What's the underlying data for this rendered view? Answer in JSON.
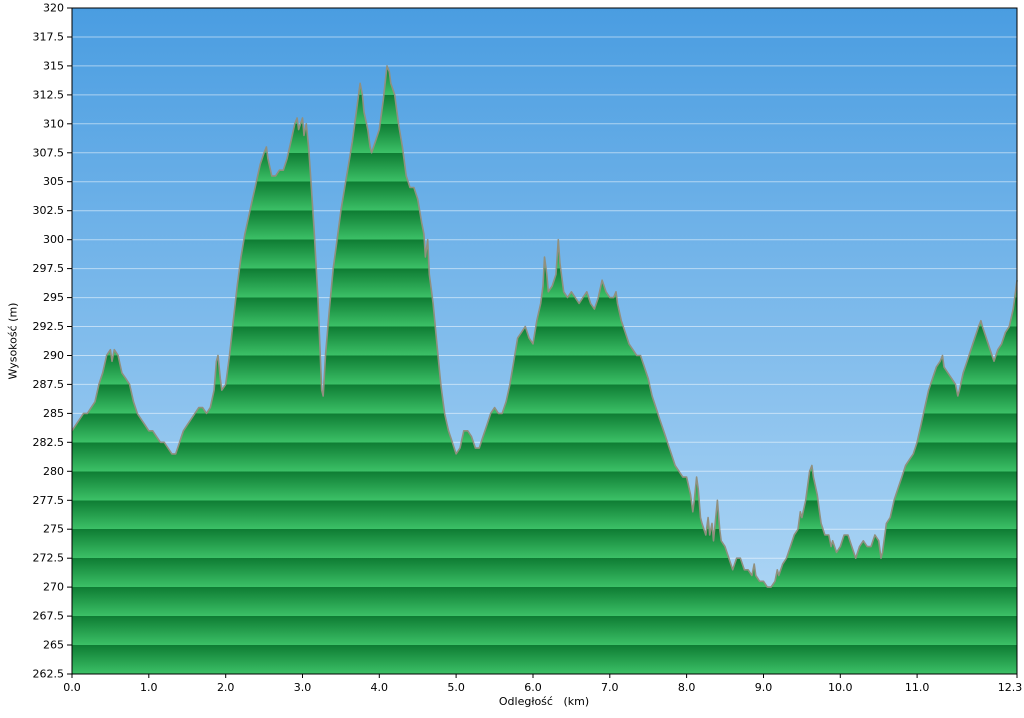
{
  "chart_data": {
    "type": "area",
    "title": "",
    "xlabel": "Odległość   (km)",
    "ylabel": "Wysokość (m)",
    "xlim": [
      0,
      12.3
    ],
    "ylim": [
      262.5,
      320
    ],
    "x_tick_step": 1.0,
    "y_tick_step": 2.5,
    "grid": "horizontal",
    "legend": "none",
    "x_ticks": [
      0,
      1,
      2,
      3,
      4,
      5,
      6,
      7,
      8,
      9,
      10,
      11,
      12.3
    ],
    "x_tick_labels": [
      "0.0",
      "1.0",
      "2.0",
      "3.0",
      "4.0",
      "5.0",
      "6.0",
      "7.0",
      "8.0",
      "9.0",
      "10.0",
      "11.0",
      "12.3"
    ],
    "y_ticks": [
      262.5,
      265,
      267.5,
      270,
      272.5,
      275,
      277.5,
      280,
      282.5,
      285,
      287.5,
      290,
      292.5,
      295,
      297.5,
      300,
      302.5,
      305,
      307.5,
      310,
      312.5,
      315,
      317.5,
      320
    ],
    "colors": {
      "sky_top": "#4a9de1",
      "sky_bottom": "#b9dcf7",
      "terrain_dark": "#0e7c33",
      "terrain_light": "#3cc167",
      "terrain_outline": "#90907f",
      "gridline": "#ffffff",
      "axis": "#000000",
      "background": "#ffffff"
    },
    "series": [
      {
        "name": "elevation",
        "points": [
          [
            0.0,
            283.5
          ],
          [
            0.05,
            284
          ],
          [
            0.1,
            284.5
          ],
          [
            0.15,
            285
          ],
          [
            0.2,
            285
          ],
          [
            0.25,
            285.5
          ],
          [
            0.3,
            286
          ],
          [
            0.35,
            287.5
          ],
          [
            0.4,
            288.5
          ],
          [
            0.45,
            290
          ],
          [
            0.5,
            290.5
          ],
          [
            0.52,
            289.5
          ],
          [
            0.55,
            290.5
          ],
          [
            0.6,
            290
          ],
          [
            0.65,
            288.5
          ],
          [
            0.7,
            288
          ],
          [
            0.75,
            287.5
          ],
          [
            0.8,
            286
          ],
          [
            0.85,
            285
          ],
          [
            0.9,
            284.5
          ],
          [
            0.95,
            284
          ],
          [
            1.0,
            283.5
          ],
          [
            1.05,
            283.5
          ],
          [
            1.1,
            283
          ],
          [
            1.15,
            282.5
          ],
          [
            1.2,
            282.5
          ],
          [
            1.25,
            282
          ],
          [
            1.3,
            281.5
          ],
          [
            1.35,
            281.5
          ],
          [
            1.4,
            282.5
          ],
          [
            1.45,
            283.5
          ],
          [
            1.5,
            284
          ],
          [
            1.55,
            284.5
          ],
          [
            1.6,
            285
          ],
          [
            1.65,
            285.5
          ],
          [
            1.7,
            285.5
          ],
          [
            1.75,
            285
          ],
          [
            1.8,
            285.5
          ],
          [
            1.85,
            287
          ],
          [
            1.88,
            289.5
          ],
          [
            1.9,
            290
          ],
          [
            1.93,
            288
          ],
          [
            1.95,
            287
          ],
          [
            2.0,
            287.5
          ],
          [
            2.05,
            290
          ],
          [
            2.1,
            293
          ],
          [
            2.15,
            296
          ],
          [
            2.2,
            298.5
          ],
          [
            2.25,
            300.5
          ],
          [
            2.3,
            302
          ],
          [
            2.35,
            303.5
          ],
          [
            2.4,
            305
          ],
          [
            2.45,
            306.5
          ],
          [
            2.5,
            307.5
          ],
          [
            2.53,
            308
          ],
          [
            2.55,
            307
          ],
          [
            2.6,
            305.5
          ],
          [
            2.65,
            305.5
          ],
          [
            2.7,
            306
          ],
          [
            2.75,
            306
          ],
          [
            2.8,
            307
          ],
          [
            2.85,
            308.5
          ],
          [
            2.9,
            310
          ],
          [
            2.93,
            310.5
          ],
          [
            2.95,
            309.5
          ],
          [
            3.0,
            310.5
          ],
          [
            3.02,
            309
          ],
          [
            3.05,
            310
          ],
          [
            3.08,
            308
          ],
          [
            3.1,
            306
          ],
          [
            3.15,
            301
          ],
          [
            3.2,
            295
          ],
          [
            3.25,
            287
          ],
          [
            3.27,
            286.5
          ],
          [
            3.3,
            290
          ],
          [
            3.35,
            294
          ],
          [
            3.4,
            297.5
          ],
          [
            3.45,
            300
          ],
          [
            3.5,
            302.5
          ],
          [
            3.55,
            304.5
          ],
          [
            3.6,
            306.5
          ],
          [
            3.65,
            308.5
          ],
          [
            3.7,
            311
          ],
          [
            3.75,
            313.5
          ],
          [
            3.78,
            312.5
          ],
          [
            3.8,
            311
          ],
          [
            3.85,
            309.5
          ],
          [
            3.88,
            308
          ],
          [
            3.9,
            307.5
          ],
          [
            3.95,
            308.5
          ],
          [
            4.0,
            309.5
          ],
          [
            4.05,
            312
          ],
          [
            4.1,
            315
          ],
          [
            4.13,
            314.5
          ],
          [
            4.15,
            313.5
          ],
          [
            4.2,
            312.5
          ],
          [
            4.25,
            310
          ],
          [
            4.3,
            308
          ],
          [
            4.35,
            305.5
          ],
          [
            4.4,
            304.5
          ],
          [
            4.45,
            304.5
          ],
          [
            4.5,
            303.5
          ],
          [
            4.55,
            301.5
          ],
          [
            4.58,
            300.5
          ],
          [
            4.6,
            298.5
          ],
          [
            4.63,
            300
          ],
          [
            4.65,
            297
          ],
          [
            4.7,
            294.5
          ],
          [
            4.75,
            291
          ],
          [
            4.8,
            287.5
          ],
          [
            4.85,
            285
          ],
          [
            4.9,
            283.5
          ],
          [
            4.95,
            282.5
          ],
          [
            5.0,
            281.5
          ],
          [
            5.05,
            282
          ],
          [
            5.1,
            283.5
          ],
          [
            5.15,
            283.5
          ],
          [
            5.2,
            283
          ],
          [
            5.25,
            282
          ],
          [
            5.3,
            282
          ],
          [
            5.35,
            283
          ],
          [
            5.4,
            284
          ],
          [
            5.45,
            285
          ],
          [
            5.5,
            285.5
          ],
          [
            5.55,
            285
          ],
          [
            5.6,
            285
          ],
          [
            5.65,
            286
          ],
          [
            5.7,
            287.5
          ],
          [
            5.75,
            289.5
          ],
          [
            5.8,
            291.5
          ],
          [
            5.85,
            292
          ],
          [
            5.9,
            292.5
          ],
          [
            5.95,
            291.5
          ],
          [
            6.0,
            291
          ],
          [
            6.05,
            293
          ],
          [
            6.1,
            294.5
          ],
          [
            6.13,
            296
          ],
          [
            6.15,
            298.5
          ],
          [
            6.18,
            297
          ],
          [
            6.2,
            295.5
          ],
          [
            6.25,
            296
          ],
          [
            6.3,
            297
          ],
          [
            6.33,
            300
          ],
          [
            6.35,
            298
          ],
          [
            6.4,
            295.5
          ],
          [
            6.45,
            295
          ],
          [
            6.5,
            295.5
          ],
          [
            6.55,
            295
          ],
          [
            6.6,
            294.5
          ],
          [
            6.65,
            295
          ],
          [
            6.7,
            295.5
          ],
          [
            6.75,
            294.5
          ],
          [
            6.8,
            294
          ],
          [
            6.85,
            295
          ],
          [
            6.9,
            296.5
          ],
          [
            6.95,
            295.5
          ],
          [
            7.0,
            295
          ],
          [
            7.05,
            295
          ],
          [
            7.08,
            295.5
          ],
          [
            7.1,
            294.5
          ],
          [
            7.15,
            293
          ],
          [
            7.2,
            292
          ],
          [
            7.25,
            291
          ],
          [
            7.3,
            290.5
          ],
          [
            7.35,
            290
          ],
          [
            7.4,
            290
          ],
          [
            7.45,
            289
          ],
          [
            7.5,
            288
          ],
          [
            7.55,
            286.5
          ],
          [
            7.6,
            285.5
          ],
          [
            7.65,
            284.5
          ],
          [
            7.7,
            283.5
          ],
          [
            7.75,
            282.5
          ],
          [
            7.8,
            281.5
          ],
          [
            7.85,
            280.5
          ],
          [
            7.9,
            280
          ],
          [
            7.95,
            279.5
          ],
          [
            8.0,
            279.5
          ],
          [
            8.05,
            278
          ],
          [
            8.08,
            276.5
          ],
          [
            8.1,
            277.5
          ],
          [
            8.13,
            279.5
          ],
          [
            8.15,
            278.5
          ],
          [
            8.18,
            276
          ],
          [
            8.2,
            275.5
          ],
          [
            8.25,
            274.5
          ],
          [
            8.28,
            276
          ],
          [
            8.3,
            274.5
          ],
          [
            8.33,
            275.5
          ],
          [
            8.35,
            274
          ],
          [
            8.4,
            277.5
          ],
          [
            8.43,
            275
          ],
          [
            8.45,
            274
          ],
          [
            8.5,
            273.5
          ],
          [
            8.55,
            272.5
          ],
          [
            8.6,
            271.5
          ],
          [
            8.65,
            272.5
          ],
          [
            8.7,
            272.5
          ],
          [
            8.75,
            271.5
          ],
          [
            8.8,
            271.5
          ],
          [
            8.85,
            271
          ],
          [
            8.88,
            272
          ],
          [
            8.9,
            271
          ],
          [
            8.95,
            270.5
          ],
          [
            9.0,
            270.5
          ],
          [
            9.05,
            270
          ],
          [
            9.1,
            270
          ],
          [
            9.15,
            270.5
          ],
          [
            9.18,
            271.5
          ],
          [
            9.2,
            271
          ],
          [
            9.25,
            272
          ],
          [
            9.3,
            272.5
          ],
          [
            9.35,
            273.5
          ],
          [
            9.4,
            274.5
          ],
          [
            9.45,
            275
          ],
          [
            9.48,
            276.5
          ],
          [
            9.5,
            276
          ],
          [
            9.55,
            277.5
          ],
          [
            9.6,
            280
          ],
          [
            9.63,
            280.5
          ],
          [
            9.65,
            279.5
          ],
          [
            9.7,
            278
          ],
          [
            9.73,
            276.5
          ],
          [
            9.75,
            275.5
          ],
          [
            9.8,
            274.5
          ],
          [
            9.85,
            274.5
          ],
          [
            9.88,
            273.5
          ],
          [
            9.9,
            274
          ],
          [
            9.95,
            273
          ],
          [
            10.0,
            273.5
          ],
          [
            10.05,
            274.5
          ],
          [
            10.1,
            274.5
          ],
          [
            10.15,
            273.5
          ],
          [
            10.2,
            272.5
          ],
          [
            10.25,
            273.5
          ],
          [
            10.3,
            274
          ],
          [
            10.35,
            273.5
          ],
          [
            10.4,
            273.5
          ],
          [
            10.45,
            274.5
          ],
          [
            10.5,
            274
          ],
          [
            10.53,
            272.5
          ],
          [
            10.55,
            273
          ],
          [
            10.6,
            275.5
          ],
          [
            10.65,
            276
          ],
          [
            10.7,
            277.5
          ],
          [
            10.75,
            278.5
          ],
          [
            10.8,
            279.5
          ],
          [
            10.85,
            280.5
          ],
          [
            10.9,
            281
          ],
          [
            10.95,
            281.5
          ],
          [
            11.0,
            282.5
          ],
          [
            11.05,
            284
          ],
          [
            11.1,
            285.5
          ],
          [
            11.15,
            287
          ],
          [
            11.2,
            288
          ],
          [
            11.25,
            289
          ],
          [
            11.3,
            289.5
          ],
          [
            11.33,
            290
          ],
          [
            11.35,
            289
          ],
          [
            11.4,
            288.5
          ],
          [
            11.45,
            288
          ],
          [
            11.5,
            287.5
          ],
          [
            11.53,
            286.5
          ],
          [
            11.55,
            287
          ],
          [
            11.6,
            288.5
          ],
          [
            11.65,
            289.5
          ],
          [
            11.7,
            290.5
          ],
          [
            11.75,
            291.5
          ],
          [
            11.8,
            292.5
          ],
          [
            11.83,
            293
          ],
          [
            11.85,
            292.5
          ],
          [
            11.9,
            291.5
          ],
          [
            11.95,
            290.5
          ],
          [
            12.0,
            289.5
          ],
          [
            12.05,
            290.5
          ],
          [
            12.1,
            291
          ],
          [
            12.15,
            292
          ],
          [
            12.2,
            292.5
          ],
          [
            12.25,
            294
          ],
          [
            12.28,
            295.5
          ],
          [
            12.3,
            296.5
          ]
        ]
      }
    ]
  }
}
